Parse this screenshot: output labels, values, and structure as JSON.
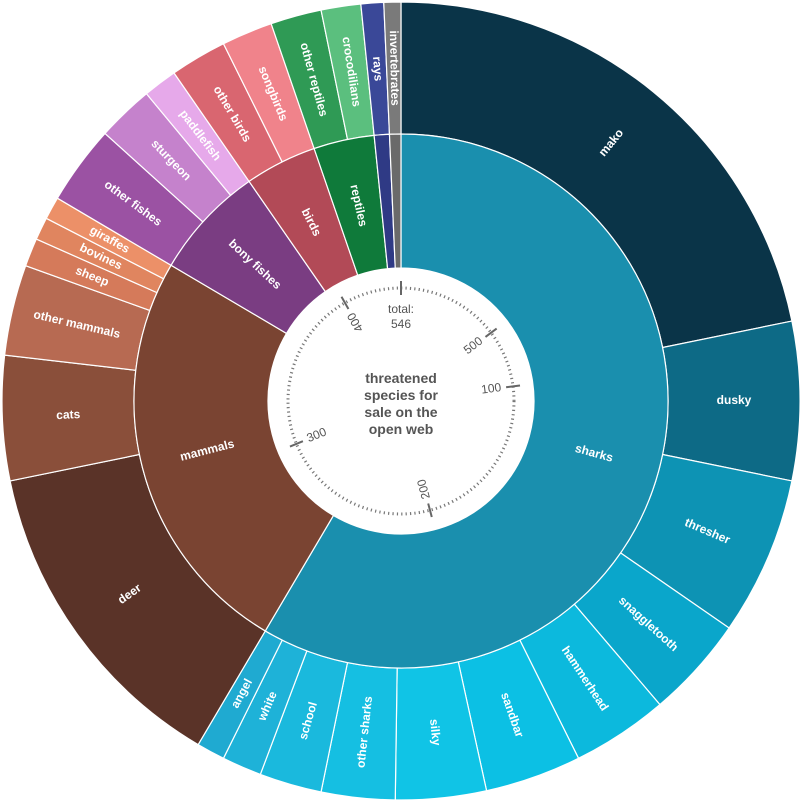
{
  "chart_data": {
    "type": "sunburst",
    "title": "threatened species for sale on the open web",
    "total_label": "total:",
    "total_value": 546,
    "scale_ticks": [
      100,
      200,
      300,
      400,
      500
    ],
    "groups": [
      {
        "name": "sharks",
        "color": "#1a8fae",
        "children": [
          {
            "name": "mako",
            "value": 95,
            "color": "#0a3448"
          },
          {
            "name": "dusky",
            "value": 28,
            "color": "#0d6a86"
          },
          {
            "name": "thresher",
            "value": 28,
            "color": "#0d93b4"
          },
          {
            "name": "snaggletooth",
            "value": 18,
            "color": "#0aa6cb"
          },
          {
            "name": "hammerhead",
            "value": 17,
            "color": "#0cb9dd"
          },
          {
            "name": "sandbar",
            "value": 17,
            "color": "#0cc0e4"
          },
          {
            "name": "silky",
            "value": 16,
            "color": "#10c4e6"
          },
          {
            "name": "other sharks",
            "value": 13,
            "color": "#15bfe2"
          },
          {
            "name": "school",
            "value": 11,
            "color": "#1ab9dd"
          },
          {
            "name": "white",
            "value": 7,
            "color": "#1eb2d8"
          },
          {
            "name": "angel",
            "value": 5,
            "color": "#1faad1"
          }
        ]
      },
      {
        "name": "mammals",
        "color": "#7a4432",
        "children": [
          {
            "name": "deer",
            "value": 58,
            "color": "#5a3328"
          },
          {
            "name": "cats",
            "value": 22,
            "color": "#8a4f3a"
          },
          {
            "name": "other mammals",
            "value": 16,
            "color": "#b76a52"
          },
          {
            "name": "sheep",
            "value": 5,
            "color": "#d57a5a"
          },
          {
            "name": "bovines",
            "value": 4,
            "color": "#e0855f"
          },
          {
            "name": "giraffes",
            "value": 4,
            "color": "#ec9068"
          }
        ]
      },
      {
        "name": "bony fishes",
        "color": "#7a3d82",
        "children": [
          {
            "name": "other fishes",
            "value": 14,
            "color": "#9b52a3"
          },
          {
            "name": "sturgeon",
            "value": 10,
            "color": "#c582cc"
          },
          {
            "name": "paddlefish",
            "value": 6,
            "color": "#e6a9ea"
          }
        ]
      },
      {
        "name": "birds",
        "color": "#b24a57",
        "children": [
          {
            "name": "other birds",
            "value": 10,
            "color": "#d96670"
          },
          {
            "name": "songbirds",
            "value": 9,
            "color": "#f0838b"
          }
        ]
      },
      {
        "name": "reptiles",
        "color": "#0f7a3a",
        "children": [
          {
            "name": "other reptiles",
            "value": 9,
            "color": "#2f9a55"
          },
          {
            "name": "crocodilians",
            "value": 7,
            "color": "#5bbf7e"
          }
        ]
      },
      {
        "name": "rays",
        "color": "#2f3a85",
        "children": [
          {
            "name": "rays",
            "value": 4,
            "color": "#3a4898"
          }
        ]
      },
      {
        "name": "invertebrates",
        "color": "#6a6a6a",
        "children": [
          {
            "name": "invertebrates",
            "value": 3,
            "color": "#7a7a7a"
          }
        ]
      }
    ]
  }
}
